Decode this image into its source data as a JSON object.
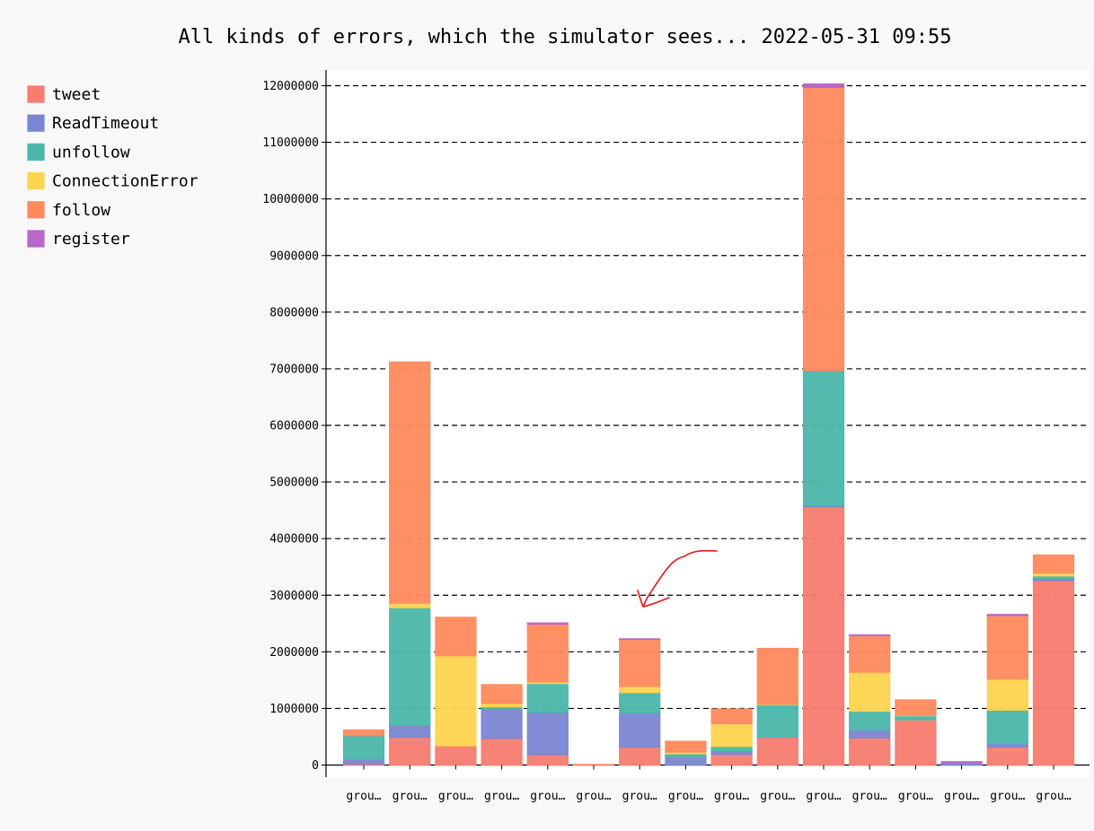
{
  "chart_data": {
    "type": "bar",
    "stacked": true,
    "title": "All kinds of errors, which the simulator sees... 2022-05-31 09:55",
    "xlabel": "",
    "ylabel": "",
    "ylim": [
      0,
      12000000
    ],
    "yticks": [
      0,
      1000000,
      2000000,
      3000000,
      4000000,
      5000000,
      6000000,
      7000000,
      8000000,
      9000000,
      10000000,
      11000000,
      12000000
    ],
    "grid": "horizontal-dashed",
    "legend_position": "left",
    "categories": [
      "grou…",
      "grou…",
      "grou…",
      "grou…",
      "grou…",
      "grou…",
      "grou…",
      "grou…",
      "grou…",
      "grou…",
      "grou…",
      "grou…",
      "grou…",
      "grou…",
      "grou…",
      "grou…"
    ],
    "series": [
      {
        "name": "tweet",
        "color": "#f77c70",
        "values": [
          20000,
          490000,
          340000,
          470000,
          180000,
          0,
          320000,
          0,
          190000,
          490000,
          4560000,
          480000,
          800000,
          0,
          320000,
          3260000
        ]
      },
      {
        "name": "ReadTimeout",
        "color": "#7b86d2",
        "values": [
          80000,
          210000,
          0,
          520000,
          750000,
          0,
          600000,
          150000,
          60000,
          0,
          20000,
          140000,
          0,
          30000,
          60000,
          30000
        ]
      },
      {
        "name": "unfollow",
        "color": "#4cb6aa",
        "values": [
          420000,
          2080000,
          0,
          40000,
          510000,
          0,
          360000,
          50000,
          80000,
          580000,
          2390000,
          330000,
          70000,
          0,
          590000,
          50000
        ]
      },
      {
        "name": "ConnectionError",
        "color": "#ffd44f",
        "values": [
          0,
          80000,
          1590000,
          60000,
          30000,
          0,
          110000,
          30000,
          400000,
          10000,
          0,
          690000,
          10000,
          0,
          550000,
          50000
        ]
      },
      {
        "name": "follow",
        "color": "#ff8a5e",
        "values": [
          100000,
          4260000,
          680000,
          330000,
          1020000,
          10000,
          830000,
          190000,
          260000,
          980000,
          5000000,
          650000,
          270000,
          0,
          1120000,
          320000
        ]
      },
      {
        "name": "register",
        "color": "#b868c9",
        "values": [
          0,
          0,
          0,
          0,
          20000,
          0,
          10000,
          0,
          0,
          0,
          60000,
          10000,
          0,
          30000,
          20000,
          0
        ]
      }
    ],
    "annotation": "hand-drawn red arrow pointing down-left"
  }
}
